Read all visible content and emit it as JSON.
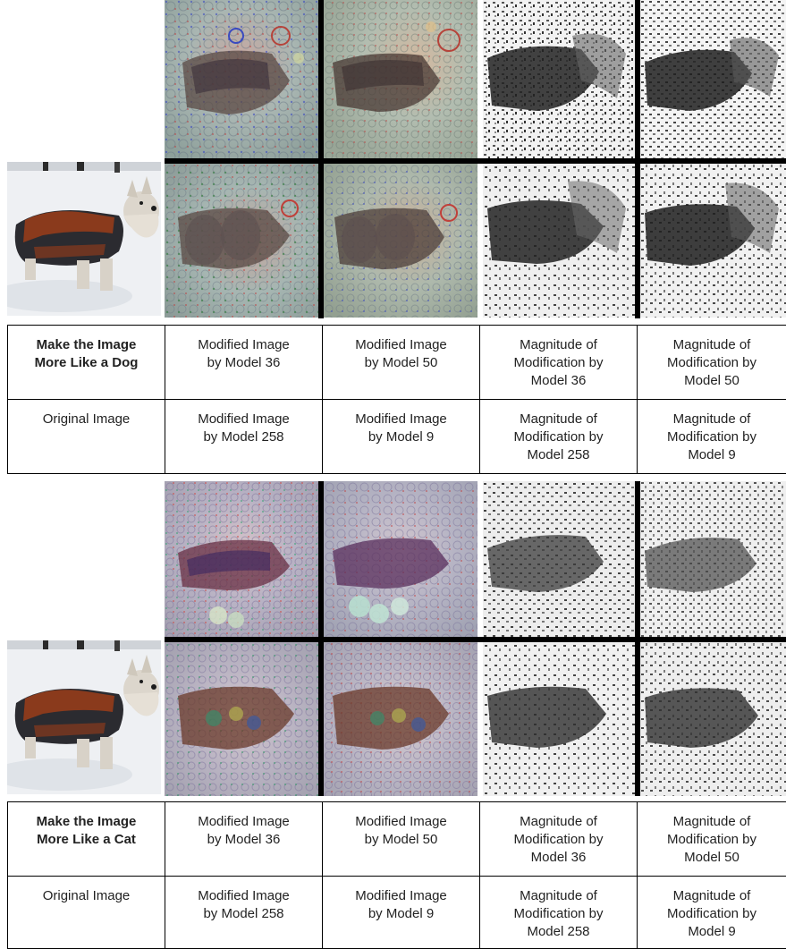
{
  "sections": [
    {
      "id": "dog",
      "table": {
        "rows": [
          [
            {
              "text": "Make the Image\nMore Like a Dog",
              "bold": true
            },
            {
              "text": "Modified Image\nby Model 36",
              "bold": false
            },
            {
              "text": "Modified Image\nby Model 50",
              "bold": false
            },
            {
              "text": "Magnitude of\nModification by\nModel 36",
              "bold": false
            },
            {
              "text": "Magnitude of\nModification by\nModel 50",
              "bold": false
            }
          ],
          [
            {
              "text": "Original Image",
              "bold": false
            },
            {
              "text": "Modified Image\nby Model 258",
              "bold": false
            },
            {
              "text": "Modified Image\nby Model 9",
              "bold": false
            },
            {
              "text": "Magnitude of\nModification by\nModel 258",
              "bold": false
            },
            {
              "text": "Magnitude of\nModification by\nModel 9",
              "bold": false
            }
          ]
        ]
      }
    },
    {
      "id": "cat",
      "table": {
        "rows": [
          [
            {
              "text": "Make the Image\nMore Like a Cat",
              "bold": true
            },
            {
              "text": "Modified Image\nby Model 36",
              "bold": false
            },
            {
              "text": "Modified Image\nby Model 50",
              "bold": false
            },
            {
              "text": "Magnitude of\nModification by\nModel 36",
              "bold": false
            },
            {
              "text": "Magnitude of\nModification by\nModel 50",
              "bold": false
            }
          ],
          [
            {
              "text": "Original Image",
              "bold": false
            },
            {
              "text": "Modified Image\nby Model 258",
              "bold": false
            },
            {
              "text": "Modified Image\nby Model 9",
              "bold": false
            },
            {
              "text": "Magnitude of\nModification by\nModel 258",
              "bold": false
            },
            {
              "text": "Magnitude of\nModification by\nModel 9",
              "bold": false
            }
          ]
        ]
      }
    }
  ],
  "colors": {
    "snow": "#eef0f3",
    "coat_brown": "#8a3a1c",
    "coat_dark": "#2b2b30",
    "dog_fur": "#dcd6cc",
    "separator": "#000000",
    "table_border": "#000000"
  }
}
